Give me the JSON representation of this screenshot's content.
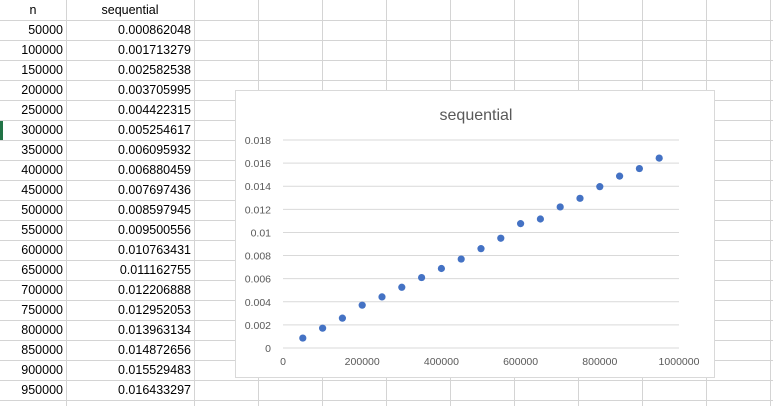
{
  "sheet": {
    "col_a_header": "n",
    "col_b_header": "sequential",
    "rows": [
      {
        "n": "50000",
        "sequential": "0.000862048"
      },
      {
        "n": "100000",
        "sequential": "0.001713279"
      },
      {
        "n": "150000",
        "sequential": "0.002582538"
      },
      {
        "n": "200000",
        "sequential": "0.003705995"
      },
      {
        "n": "250000",
        "sequential": "0.004422315"
      },
      {
        "n": "300000",
        "sequential": "0.005254617"
      },
      {
        "n": "350000",
        "sequential": "0.006095932"
      },
      {
        "n": "400000",
        "sequential": "0.006880459"
      },
      {
        "n": "450000",
        "sequential": "0.007697436"
      },
      {
        "n": "500000",
        "sequential": "0.008597945"
      },
      {
        "n": "550000",
        "sequential": "0.009500556"
      },
      {
        "n": "600000",
        "sequential": "0.010763431"
      },
      {
        "n": "650000",
        "sequential": "0.011162755"
      },
      {
        "n": "700000",
        "sequential": "0.012206888"
      },
      {
        "n": "750000",
        "sequential": "0.012952053"
      },
      {
        "n": "800000",
        "sequential": "0.013963134"
      },
      {
        "n": "850000",
        "sequential": "0.014872656"
      },
      {
        "n": "900000",
        "sequential": "0.015529483"
      },
      {
        "n": "950000",
        "sequential": "0.016433297"
      }
    ]
  },
  "colors": {
    "marker": "#4472c4",
    "gridline": "#d9d9d9",
    "axis_text": "#595959",
    "active_row": "#217346"
  },
  "chart_data": {
    "type": "scatter",
    "title": "sequential",
    "xlabel": "",
    "ylabel": "",
    "xlim": [
      0,
      1000000
    ],
    "ylim": [
      0,
      0.018
    ],
    "x_ticks": [
      "0",
      "200000",
      "400000",
      "600000",
      "800000",
      "1000000"
    ],
    "y_ticks": [
      "0",
      "0.002",
      "0.004",
      "0.006",
      "0.008",
      "0.01",
      "0.012",
      "0.014",
      "0.016",
      "0.018"
    ],
    "grid": "horizontal",
    "legend": "none",
    "series": [
      {
        "x": [
          50000,
          100000,
          150000,
          200000,
          250000,
          300000,
          350000,
          400000,
          450000,
          500000,
          550000,
          600000,
          650000,
          700000,
          750000,
          800000,
          850000,
          900000,
          950000
        ],
        "y": [
          0.000862048,
          0.001713279,
          0.002582538,
          0.003705995,
          0.004422315,
          0.005254617,
          0.006095932,
          0.006880459,
          0.007697436,
          0.008597945,
          0.009500556,
          0.010763431,
          0.011162755,
          0.012206888,
          0.012952053,
          0.013963134,
          0.014872656,
          0.015529483,
          0.016433297
        ]
      }
    ]
  }
}
